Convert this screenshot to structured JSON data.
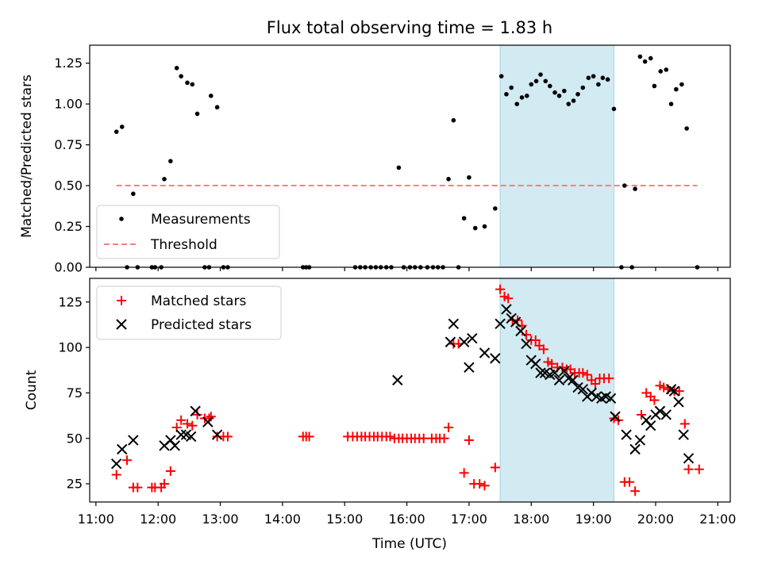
{
  "chart_data": [
    {
      "type": "scatter",
      "panel": "top",
      "title": "Flux total observing time = 1.83 h",
      "ylabel": "Matched/Predicted stars",
      "xlabel": "",
      "xlim": [
        10.9,
        21.2
      ],
      "ylim": [
        0,
        1.36
      ],
      "yticks": [
        0.0,
        0.25,
        0.5,
        0.75,
        1.0,
        1.25
      ],
      "ytick_labels": [
        "0.00",
        "0.25",
        "0.50",
        "0.75",
        "1.00",
        "1.25"
      ],
      "legend_position": "lower-left",
      "highlight_span": {
        "x_start": 17.5,
        "x_end": 19.33,
        "color": "#add8e6"
      },
      "series": [
        {
          "name": "Measurements",
          "marker": "dot",
          "color": "#000000",
          "points": [
            [
              11.33,
              0.83
            ],
            [
              11.42,
              0.86
            ],
            [
              11.5,
              0.0
            ],
            [
              11.6,
              0.45
            ],
            [
              11.67,
              0.0
            ],
            [
              11.9,
              0.0
            ],
            [
              11.95,
              0.0
            ],
            [
              12.05,
              0.0
            ],
            [
              12.1,
              0.54
            ],
            [
              12.2,
              0.65
            ],
            [
              12.3,
              1.22
            ],
            [
              12.37,
              1.17
            ],
            [
              12.47,
              1.13
            ],
            [
              12.55,
              1.12
            ],
            [
              12.63,
              0.94
            ],
            [
              12.75,
              0.0
            ],
            [
              12.82,
              0.0
            ],
            [
              12.85,
              1.05
            ],
            [
              12.95,
              0.98
            ],
            [
              13.05,
              0.0
            ],
            [
              13.12,
              0.0
            ],
            [
              14.33,
              0.0
            ],
            [
              14.38,
              0.0
            ],
            [
              14.43,
              0.0
            ],
            [
              15.17,
              0.0
            ],
            [
              15.25,
              0.0
            ],
            [
              15.33,
              0.0
            ],
            [
              15.42,
              0.0
            ],
            [
              15.5,
              0.0
            ],
            [
              15.58,
              0.0
            ],
            [
              15.67,
              0.0
            ],
            [
              15.75,
              0.0
            ],
            [
              15.87,
              0.61
            ],
            [
              15.95,
              0.0
            ],
            [
              16.05,
              0.0
            ],
            [
              16.13,
              0.0
            ],
            [
              16.22,
              0.0
            ],
            [
              16.33,
              0.0
            ],
            [
              16.42,
              0.0
            ],
            [
              16.5,
              0.0
            ],
            [
              16.58,
              0.0
            ],
            [
              16.67,
              0.54
            ],
            [
              16.75,
              0.9
            ],
            [
              16.83,
              0.0
            ],
            [
              16.92,
              0.3
            ],
            [
              17.0,
              0.55
            ],
            [
              17.1,
              0.24
            ],
            [
              17.25,
              0.25
            ],
            [
              17.42,
              0.36
            ],
            [
              17.52,
              1.17
            ],
            [
              17.6,
              1.06
            ],
            [
              17.68,
              1.1
            ],
            [
              17.77,
              1.0
            ],
            [
              17.85,
              1.04
            ],
            [
              17.93,
              1.05
            ],
            [
              18.0,
              1.12
            ],
            [
              18.08,
              1.14
            ],
            [
              18.15,
              1.18
            ],
            [
              18.23,
              1.14
            ],
            [
              18.3,
              1.11
            ],
            [
              18.38,
              1.07
            ],
            [
              18.45,
              1.05
            ],
            [
              18.53,
              1.08
            ],
            [
              18.6,
              1.0
            ],
            [
              18.68,
              1.02
            ],
            [
              18.75,
              1.06
            ],
            [
              18.83,
              1.1
            ],
            [
              18.92,
              1.16
            ],
            [
              19.0,
              1.17
            ],
            [
              19.08,
              1.12
            ],
            [
              19.15,
              1.16
            ],
            [
              19.23,
              1.15
            ],
            [
              19.33,
              0.97
            ],
            [
              19.45,
              0.0
            ],
            [
              19.5,
              0.5
            ],
            [
              19.62,
              0.0
            ],
            [
              19.67,
              0.48
            ],
            [
              19.75,
              1.29
            ],
            [
              19.83,
              1.26
            ],
            [
              19.92,
              1.28
            ],
            [
              19.98,
              1.11
            ],
            [
              20.08,
              1.2
            ],
            [
              20.17,
              1.21
            ],
            [
              20.25,
              1.0
            ],
            [
              20.33,
              1.09
            ],
            [
              20.42,
              1.12
            ],
            [
              20.5,
              0.85
            ],
            [
              20.67,
              0.0
            ]
          ]
        },
        {
          "name": "Threshold",
          "marker": "dashed-line",
          "color": "#ff7f7f",
          "points": [
            [
              11.33,
              0.5
            ],
            [
              20.67,
              0.5
            ]
          ]
        }
      ]
    },
    {
      "type": "scatter",
      "panel": "bottom",
      "ylabel": "Count",
      "xlabel": "Time (UTC)",
      "xlim": [
        10.9,
        21.2
      ],
      "ylim": [
        15,
        138
      ],
      "yticks": [
        25,
        50,
        75,
        100,
        125
      ],
      "ytick_labels": [
        "25",
        "50",
        "75",
        "100",
        "125"
      ],
      "xticks": [
        11,
        12,
        13,
        14,
        15,
        16,
        17,
        18,
        19,
        20,
        21
      ],
      "xtick_labels": [
        "11:00",
        "12:00",
        "13:00",
        "14:00",
        "15:00",
        "16:00",
        "17:00",
        "18:00",
        "19:00",
        "20:00",
        "21:00"
      ],
      "legend_position": "upper-left",
      "highlight_span": {
        "x_start": 17.5,
        "x_end": 19.33,
        "color": "#add8e6"
      },
      "series": [
        {
          "name": "Matched stars",
          "marker": "plus",
          "color": "#ff0000",
          "points": [
            [
              11.33,
              30
            ],
            [
              11.5,
              38
            ],
            [
              11.6,
              23
            ],
            [
              11.67,
              23
            ],
            [
              11.9,
              23
            ],
            [
              11.95,
              23
            ],
            [
              12.05,
              23
            ],
            [
              12.1,
              25
            ],
            [
              12.2,
              32
            ],
            [
              12.3,
              56
            ],
            [
              12.37,
              60
            ],
            [
              12.47,
              58
            ],
            [
              12.55,
              57
            ],
            [
              12.63,
              63
            ],
            [
              12.75,
              61
            ],
            [
              12.82,
              61
            ],
            [
              12.85,
              62
            ],
            [
              12.95,
              51
            ],
            [
              13.05,
              51
            ],
            [
              13.12,
              51
            ],
            [
              14.33,
              51
            ],
            [
              14.38,
              51
            ],
            [
              14.43,
              51
            ],
            [
              15.05,
              51
            ],
            [
              15.13,
              51
            ],
            [
              15.2,
              51
            ],
            [
              15.27,
              51
            ],
            [
              15.33,
              51
            ],
            [
              15.4,
              51
            ],
            [
              15.47,
              51
            ],
            [
              15.53,
              51
            ],
            [
              15.6,
              51
            ],
            [
              15.67,
              51
            ],
            [
              15.73,
              51
            ],
            [
              15.8,
              50
            ],
            [
              15.87,
              50
            ],
            [
              15.93,
              50
            ],
            [
              16.0,
              50
            ],
            [
              16.07,
              50
            ],
            [
              16.13,
              50
            ],
            [
              16.2,
              50
            ],
            [
              16.27,
              50
            ],
            [
              16.4,
              50
            ],
            [
              16.47,
              50
            ],
            [
              16.53,
              50
            ],
            [
              16.6,
              50
            ],
            [
              16.67,
              56
            ],
            [
              16.75,
              102
            ],
            [
              16.83,
              102
            ],
            [
              16.92,
              31
            ],
            [
              17.0,
              49
            ],
            [
              17.08,
              25
            ],
            [
              17.17,
              25
            ],
            [
              17.25,
              24
            ],
            [
              17.42,
              34
            ],
            [
              17.5,
              132
            ],
            [
              17.57,
              128
            ],
            [
              17.63,
              127
            ],
            [
              17.7,
              115
            ],
            [
              17.78,
              115
            ],
            [
              17.85,
              112
            ],
            [
              17.92,
              107
            ],
            [
              18.0,
              104
            ],
            [
              18.07,
              104
            ],
            [
              18.13,
              101
            ],
            [
              18.2,
              99
            ],
            [
              18.27,
              92
            ],
            [
              18.33,
              91
            ],
            [
              18.42,
              89
            ],
            [
              18.5,
              89
            ],
            [
              18.57,
              88
            ],
            [
              18.63,
              88
            ],
            [
              18.7,
              86
            ],
            [
              18.77,
              86
            ],
            [
              18.83,
              86
            ],
            [
              18.9,
              85
            ],
            [
              18.97,
              82
            ],
            [
              19.03,
              80
            ],
            [
              19.1,
              83
            ],
            [
              19.17,
              83
            ],
            [
              19.25,
              83
            ],
            [
              19.33,
              61
            ],
            [
              19.4,
              60
            ],
            [
              19.5,
              26
            ],
            [
              19.58,
              26
            ],
            [
              19.67,
              21
            ],
            [
              19.77,
              63
            ],
            [
              19.85,
              75
            ],
            [
              19.92,
              73
            ],
            [
              19.98,
              71
            ],
            [
              20.07,
              79
            ],
            [
              20.13,
              78
            ],
            [
              20.2,
              77
            ],
            [
              20.3,
              76
            ],
            [
              20.38,
              76
            ],
            [
              20.47,
              58
            ],
            [
              20.53,
              33
            ],
            [
              20.7,
              33
            ]
          ]
        },
        {
          "name": "Predicted stars",
          "marker": "x",
          "color": "#000000",
          "points": [
            [
              11.33,
              36
            ],
            [
              11.42,
              44
            ],
            [
              11.6,
              49
            ],
            [
              12.1,
              46
            ],
            [
              12.2,
              49
            ],
            [
              12.27,
              46
            ],
            [
              12.37,
              52
            ],
            [
              12.45,
              52
            ],
            [
              12.53,
              51
            ],
            [
              12.6,
              65
            ],
            [
              12.8,
              59
            ],
            [
              12.95,
              52
            ],
            [
              15.85,
              82
            ],
            [
              16.7,
              103
            ],
            [
              16.75,
              113
            ],
            [
              16.92,
              103
            ],
            [
              17.0,
              89
            ],
            [
              17.05,
              105
            ],
            [
              17.25,
              97
            ],
            [
              17.42,
              94
            ],
            [
              17.5,
              113
            ],
            [
              17.6,
              121
            ],
            [
              17.68,
              116
            ],
            [
              17.75,
              114
            ],
            [
              17.83,
              109
            ],
            [
              17.92,
              102
            ],
            [
              18.0,
              93
            ],
            [
              18.07,
              91
            ],
            [
              18.15,
              86
            ],
            [
              18.22,
              86
            ],
            [
              18.3,
              85
            ],
            [
              18.38,
              86
            ],
            [
              18.45,
              82
            ],
            [
              18.53,
              87
            ],
            [
              18.6,
              83
            ],
            [
              18.67,
              82
            ],
            [
              18.75,
              78
            ],
            [
              18.83,
              77
            ],
            [
              18.9,
              73
            ],
            [
              18.97,
              75
            ],
            [
              19.05,
              73
            ],
            [
              19.13,
              72
            ],
            [
              19.2,
              73
            ],
            [
              19.28,
              72
            ],
            [
              19.35,
              62
            ],
            [
              19.53,
              52
            ],
            [
              19.67,
              44
            ],
            [
              19.75,
              49
            ],
            [
              19.85,
              60
            ],
            [
              19.92,
              57
            ],
            [
              20.0,
              63
            ],
            [
              20.07,
              65
            ],
            [
              20.17,
              63
            ],
            [
              20.25,
              77
            ],
            [
              20.3,
              76
            ],
            [
              20.37,
              70
            ],
            [
              20.45,
              52
            ],
            [
              20.53,
              39
            ]
          ]
        }
      ]
    }
  ]
}
